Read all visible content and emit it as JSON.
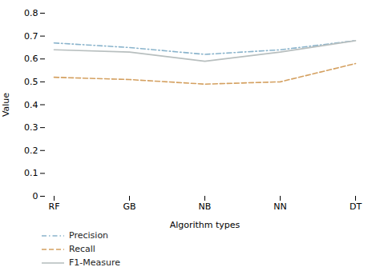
{
  "chart_data": {
    "type": "line",
    "categories": [
      "RF",
      "GB",
      "NB",
      "NN",
      "DT"
    ],
    "series": [
      {
        "name": "Precision",
        "color": "#8ab4cc",
        "line_style": "dashdot",
        "values": [
          0.67,
          0.65,
          0.62,
          0.64,
          0.68
        ]
      },
      {
        "name": "Recall",
        "color": "#d4a060",
        "line_style": "dashed",
        "values": [
          0.52,
          0.51,
          0.49,
          0.5,
          0.58
        ]
      },
      {
        "name": "F1-Measure",
        "color": "#b8bfbf",
        "line_style": "solid",
        "values": [
          0.64,
          0.63,
          0.59,
          0.63,
          0.68
        ]
      }
    ],
    "xlabel": "Algorithm types",
    "ylabel": "Value",
    "ylim": [
      0,
      0.8
    ],
    "yticks": [
      0,
      0.1,
      0.2,
      0.3,
      0.4,
      0.5,
      0.6,
      0.7,
      0.8
    ],
    "grid": false,
    "legend": "lower left"
  }
}
